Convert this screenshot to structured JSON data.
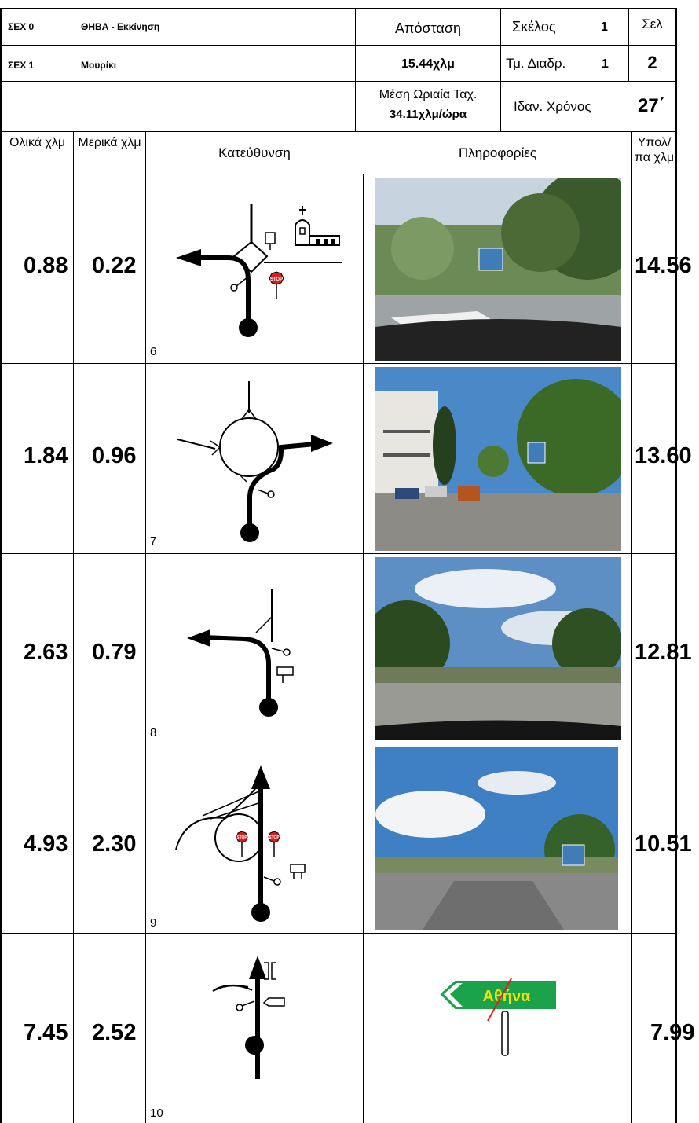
{
  "header": {
    "sex0_label": "ΣΕΧ 0",
    "sex0_name": "ΘΗΒΑ - Εκκίνηση",
    "sex1_label": "ΣΕΧ 1",
    "sex1_name": "Μουρίκι",
    "distance_label": "Απόσταση",
    "distance_value": "15.44χλμ",
    "leg_label": "Σκέλος",
    "leg_value": "1",
    "section_label": "Τμ. Διαδρ.",
    "section_value": "1",
    "page_label": "Σελ",
    "page_value": "2",
    "avg_speed_label": "Μέση Ωριαία Ταχ.",
    "avg_speed_value": "34.11χλμ/ώρα",
    "ideal_time_label": "Ιδαν. Χρόνος",
    "ideal_time_value": "27΄"
  },
  "columns": {
    "total_km": "Ολικά χλμ",
    "partial_km": "Μερικά χλμ",
    "direction": "Κατεύθυνση",
    "info": "Πληροφορίες",
    "remaining_km": "Υπολ/πα χλμ"
  },
  "rows": [
    {
      "total": "0.88",
      "partial": "0.22",
      "step": "6",
      "remaining": "14.56"
    },
    {
      "total": "1.84",
      "partial": "0.96",
      "step": "7",
      "remaining": "13.60"
    },
    {
      "total": "2.63",
      "partial": "0.79",
      "step": "8",
      "remaining": "12.81"
    },
    {
      "total": "4.93",
      "partial": "2.30",
      "step": "9",
      "remaining": "10.51"
    },
    {
      "total": "7.45",
      "partial": "2.52",
      "step": "10",
      "remaining": "7.99"
    }
  ],
  "signs": {
    "stop": "STOP",
    "athina": "Αθήνα"
  }
}
